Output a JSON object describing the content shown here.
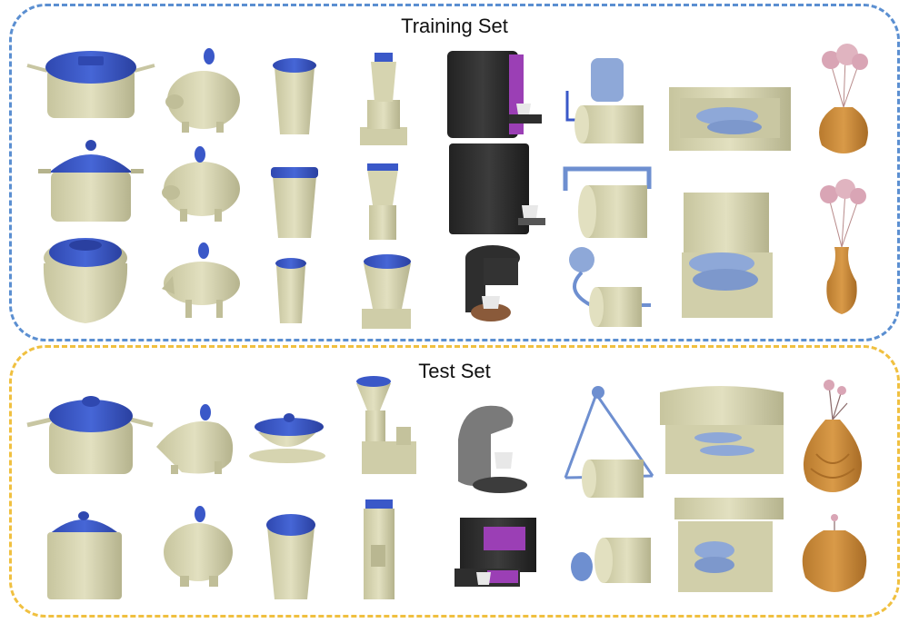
{
  "training_set": {
    "title": "Training Set",
    "border_color": "#5b8fd1"
  },
  "test_set": {
    "title": "Test Set",
    "border_color": "#f0c040"
  },
  "colors": {
    "object_body": "#d9d7b4",
    "object_shade": "#b9b791",
    "lid_blue": "#3a58c8",
    "light_blue": "#8ea8d8",
    "machine_dark": "#2e2e2e",
    "accent_purple": "#9b3fb5",
    "vase_orange": "#c98a3a",
    "flower_pink": "#d9a5b5"
  },
  "object_categories": [
    "pot",
    "piggy-bank",
    "cup",
    "blender",
    "coffee-machine",
    "toilet-paper-holder",
    "shoe-box",
    "vase"
  ]
}
